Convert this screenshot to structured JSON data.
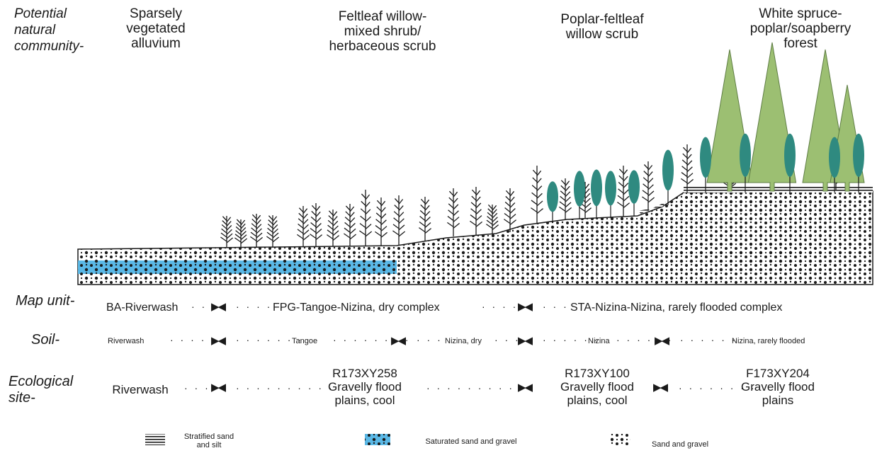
{
  "header": {
    "label": "Potential\nnatural\ncommunity-",
    "communities": [
      "Sparsely\nvegetated\nalluvium",
      "Feltleaf willow-\nmixed shrub/\nherbaceous scrub",
      "Poplar-feltleaf\nwillow scrub",
      "White spruce-\npoplar/soapberry\nforest"
    ]
  },
  "map_unit": {
    "label": "Map unit-",
    "units": [
      "BA-Riverwash",
      "FPG-Tangoe-Nizina, dry complex",
      "STA-Nizina-Nizina, rarely flooded complex"
    ]
  },
  "soil": {
    "label": "Soil-",
    "soils": [
      "Riverwash",
      "Tangoe",
      "Nizina, dry",
      "Nizina",
      "Nizina, rarely flooded"
    ]
  },
  "ecological_site": {
    "label": "Ecological\nsite-",
    "sites": [
      "Riverwash",
      "R173XY258\nGravelly flood\nplains, cool",
      "R173XY100\nGravelly flood\nplains, cool",
      "F173XY204\nGravelly flood\nplains"
    ]
  },
  "legend": {
    "items": [
      {
        "label": "Stratified sand\nand silt",
        "pattern": "stripes"
      },
      {
        "label": "Saturated  sand and gravel",
        "pattern": "saturated"
      },
      {
        "label": "Sand and gravel",
        "pattern": "dots"
      }
    ]
  },
  "colors": {
    "saturated": "#5ab8e6",
    "spruce": "#9cbf72",
    "poplar": "#2f8a80",
    "ink": "#1a1a1a"
  }
}
